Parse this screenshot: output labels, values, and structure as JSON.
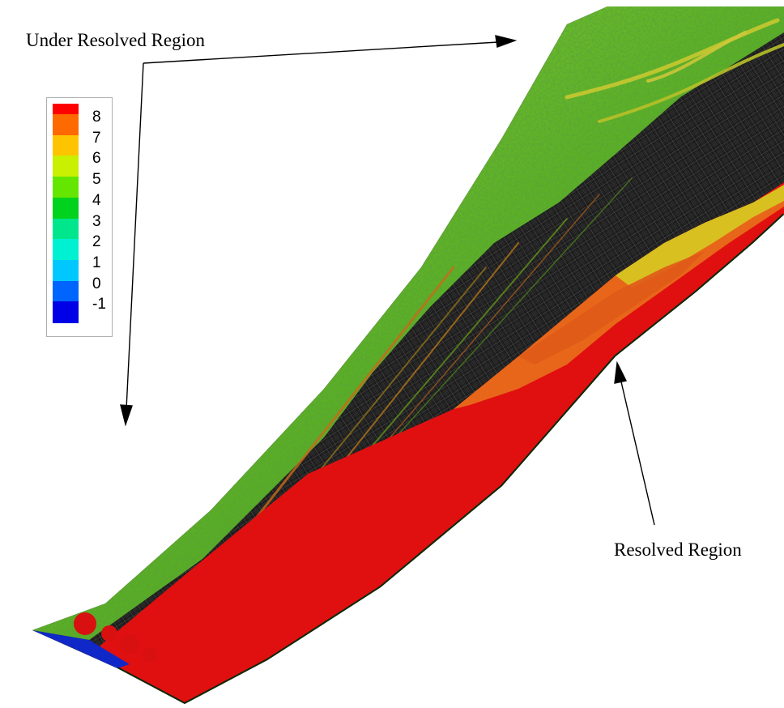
{
  "annotations": {
    "under_resolved": "Under Resolved Region",
    "resolved": "Resolved Region"
  },
  "legend": {
    "levels": [
      {
        "label": "8",
        "color": "#ff0000"
      },
      {
        "label": "7",
        "color": "#ff6a00"
      },
      {
        "label": "6",
        "color": "#ffc400"
      },
      {
        "label": "5",
        "color": "#c8f000"
      },
      {
        "label": "4",
        "color": "#64e600"
      },
      {
        "label": "3",
        "color": "#00d21e"
      },
      {
        "label": "2",
        "color": "#00e68c"
      },
      {
        "label": "1",
        "color": "#00f0d2"
      },
      {
        "label": "0",
        "color": "#00c8ff"
      },
      {
        "label": "-1",
        "color": "#0064ff"
      }
    ],
    "min_color": "#0000e6"
  },
  "colors": {
    "mesh": "#1a1a1a",
    "red_region": "#e01010",
    "orange_region": "#e8661a",
    "yellow_region": "#d8c020",
    "vortex_green": "#4aa818"
  }
}
